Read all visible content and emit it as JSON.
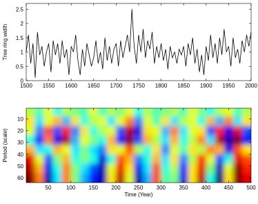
{
  "chart_data": [
    {
      "type": "line",
      "y_label": "Tree ring width",
      "color": "#000000",
      "x": [
        1500,
        1505,
        1510,
        1515,
        1520,
        1525,
        1530,
        1535,
        1540,
        1545,
        1550,
        1555,
        1560,
        1565,
        1570,
        1575,
        1580,
        1585,
        1590,
        1595,
        1600,
        1605,
        1610,
        1615,
        1620,
        1625,
        1630,
        1635,
        1640,
        1645,
        1650,
        1655,
        1660,
        1665,
        1670,
        1675,
        1680,
        1685,
        1690,
        1695,
        1700,
        1705,
        1710,
        1715,
        1720,
        1725,
        1730,
        1735,
        1740,
        1745,
        1750,
        1755,
        1760,
        1765,
        1770,
        1775,
        1780,
        1785,
        1790,
        1795,
        1800,
        1805,
        1810,
        1815,
        1820,
        1825,
        1830,
        1835,
        1840,
        1845,
        1850,
        1855,
        1860,
        1865,
        1870,
        1875,
        1880,
        1885,
        1890,
        1895,
        1900,
        1905,
        1910,
        1915,
        1920,
        1925,
        1930,
        1935,
        1940,
        1945,
        1950,
        1955,
        1960,
        1965,
        1970,
        1975,
        1980,
        1985,
        1990,
        1995,
        2000
      ],
      "values": [
        1.0,
        1.6,
        0.6,
        1.3,
        0.1,
        1.7,
        0.9,
        1.2,
        0.5,
        1.0,
        1.3,
        0.3,
        1.4,
        0.9,
        1.3,
        0.6,
        1.4,
        0.8,
        1.1,
        0.2,
        1.2,
        1.0,
        1.6,
        0.7,
        0.2,
        1.1,
        0.5,
        1.3,
        0.9,
        0.5,
        0.8,
        1.4,
        0.6,
        1.0,
        0.4,
        1.5,
        0.7,
        1.2,
        0.6,
        1.1,
        1.3,
        0.5,
        1.4,
        0.8,
        1.2,
        1.6,
        1.0,
        2.5,
        1.2,
        0.6,
        1.6,
        1.0,
        1.8,
        0.8,
        1.4,
        1.1,
        1.7,
        0.6,
        1.2,
        0.8,
        1.3,
        0.7,
        1.1,
        0.4,
        1.2,
        0.8,
        1.0,
        0.6,
        1.1,
        0.9,
        1.2,
        0.5,
        1.3,
        0.9,
        1.5,
        0.6,
        1.1,
        0.3,
        0.9,
        0.2,
        1.2,
        0.7,
        1.6,
        0.8,
        1.3,
        0.6,
        1.5,
        0.9,
        1.8,
        1.0,
        1.2,
        0.5,
        1.5,
        0.8,
        1.1,
        0.6,
        1.4,
        1.0,
        1.6,
        1.2,
        1.7
      ],
      "xlim": [
        1500,
        2000
      ],
      "xticks": [
        1500,
        1550,
        1600,
        1650,
        1700,
        1750,
        1800,
        1850,
        1900,
        1950,
        2000
      ],
      "ylim": [
        0,
        2.7
      ],
      "yticks": [
        0,
        0.5,
        1,
        1.5,
        2,
        2.5
      ]
    },
    {
      "type": "heatmap",
      "x_label": "Time (Year)",
      "y_label": "Period (scale)",
      "colormap": "jet",
      "x": [
        10,
        30,
        50,
        70,
        90,
        110,
        130,
        150,
        170,
        190,
        210,
        230,
        250,
        270,
        290,
        310,
        330,
        350,
        370,
        390,
        410,
        430,
        450,
        470,
        490
      ],
      "y": [
        4,
        12,
        20,
        28,
        36,
        44,
        52,
        60
      ],
      "z": [
        [
          0.1,
          -0.1,
          0.2,
          -0.2,
          0.1,
          0,
          -0.1,
          0.2,
          -0.1,
          0.1,
          0,
          0.2,
          -0.2,
          0.1,
          -0.1,
          0,
          0.1,
          -0.1,
          0.2,
          0,
          -0.2,
          0.1,
          0.2,
          -0.1,
          0.1
        ],
        [
          0.3,
          -0.3,
          0.2,
          0.4,
          -0.4,
          0.3,
          -0.2,
          0.1,
          0.2,
          -0.3,
          0.2,
          0.5,
          -0.5,
          0.2,
          -0.1,
          0.3,
          -0.3,
          0.1,
          0.2,
          -0.2,
          0.4,
          -0.4,
          0.5,
          -0.3,
          0.3
        ],
        [
          0.2,
          -0.5,
          0.6,
          -0.6,
          0.7,
          -0.5,
          0.3,
          -0.2,
          0.1,
          0.2,
          -0.6,
          0.9,
          -0.8,
          0.3,
          0.2,
          -0.4,
          0.5,
          -0.3,
          0.2,
          0.3,
          -0.6,
          0.7,
          -0.8,
          0.8,
          -0.6
        ],
        [
          -0.2,
          -0.7,
          0.5,
          -0.8,
          0.9,
          -0.4,
          0.2,
          0,
          -0.2,
          0.4,
          -0.7,
          1,
          -0.6,
          0.4,
          0.1,
          -0.3,
          0.4,
          -0.2,
          0.1,
          0.5,
          -0.3,
          0.9,
          -0.9,
          1,
          -0.7
        ],
        [
          0.4,
          -0.3,
          -0.2,
          0.4,
          0.2,
          -0.3,
          0,
          -0.3,
          -0.5,
          0.3,
          0.2,
          0.6,
          0.1,
          -0.2,
          0.3,
          -0.5,
          0.2,
          -0.1,
          0.3,
          0.1,
          0.5,
          0.4,
          -0.8,
          0.6,
          0.3
        ],
        [
          0.8,
          0.2,
          -0.6,
          0,
          0.4,
          -0.2,
          0,
          -0.2,
          -0.8,
          -0.2,
          0.6,
          0.4,
          -0.5,
          -0.2,
          0.4,
          -0.3,
          0.3,
          -0.5,
          0.1,
          0.7,
          0.2,
          -0.6,
          -0.2,
          0.8,
          0.6
        ],
        [
          0.9,
          0.4,
          -0.8,
          -0.2,
          0.5,
          0,
          -0.3,
          -0.6,
          -0.9,
          0.2,
          0.8,
          0.3,
          -0.8,
          -0.3,
          0.6,
          -0.2,
          0.1,
          -0.7,
          0.3,
          0.8,
          0,
          -0.9,
          0.2,
          1,
          0.7
        ],
        [
          1,
          0.5,
          -0.9,
          -0.3,
          0.5,
          0,
          -0.4,
          -0.7,
          -0.9,
          0.3,
          0.9,
          0.2,
          -0.9,
          -0.4,
          0.6,
          -0.1,
          0,
          -0.8,
          0.3,
          0.9,
          -0.2,
          -1,
          0.3,
          1,
          0.8
        ]
      ],
      "zlim": [
        -1,
        1
      ],
      "xlim": [
        1,
        500
      ],
      "xticks": [
        50,
        100,
        150,
        200,
        250,
        300,
        350,
        400,
        450,
        500
      ],
      "ylim": [
        1,
        64
      ],
      "yticks": [
        10,
        20,
        30,
        40,
        50,
        60
      ],
      "y_reversed": true
    }
  ]
}
